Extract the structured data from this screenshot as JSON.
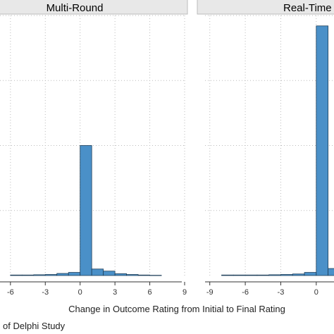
{
  "figure": {
    "xlabel": "Change in Outcome Rating from Initial to Final Rating",
    "legend_title": "of Delphi Study",
    "bar_color": "#4a90c8",
    "bar_stroke": "#1e3f5a",
    "strip_fill": "#e8e8e8",
    "grid_color": "#bbbbbb"
  },
  "chart_data": [
    {
      "type": "bar",
      "title": "Multi-Round",
      "xlabel": "Change in Outcome Rating from Initial to Final Rating",
      "xlim": [
        -6.9,
        9
      ],
      "ylim": [
        0,
        1
      ],
      "xticks": [
        "-6",
        "-3",
        "0",
        "3",
        "6",
        "9"
      ],
      "grid": "dotted",
      "bins": [
        {
          "x0": -6.0,
          "x1": -5.0,
          "value": 0.002
        },
        {
          "x0": -5.0,
          "x1": -4.0,
          "value": 0.002
        },
        {
          "x0": -4.0,
          "x1": -3.0,
          "value": 0.003
        },
        {
          "x0": -3.0,
          "x1": -2.0,
          "value": 0.004
        },
        {
          "x0": -2.0,
          "x1": -1.0,
          "value": 0.008
        },
        {
          "x0": -1.0,
          "x1": 0.0,
          "value": 0.012
        },
        {
          "x0": 0.0,
          "x1": 1.0,
          "value": 0.5
        },
        {
          "x0": 1.0,
          "x1": 2.0,
          "value": 0.025
        },
        {
          "x0": 2.0,
          "x1": 3.0,
          "value": 0.017
        },
        {
          "x0": 3.0,
          "x1": 4.0,
          "value": 0.007
        },
        {
          "x0": 4.0,
          "x1": 5.0,
          "value": 0.004
        },
        {
          "x0": 5.0,
          "x1": 6.0,
          "value": 0.002
        },
        {
          "x0": 6.0,
          "x1": 7.0,
          "value": 0.001
        }
      ]
    },
    {
      "type": "bar",
      "title": "Real-Time",
      "xlabel": "Change in Outcome Rating from Initial to Final Rating",
      "xlim": [
        -9.4,
        1.5
      ],
      "ylim": [
        0,
        1
      ],
      "xticks": [
        "-9",
        "-6",
        "-3",
        "0"
      ],
      "grid": "dotted",
      "bins": [
        {
          "x0": -8.0,
          "x1": -7.0,
          "value": 0.002
        },
        {
          "x0": -7.0,
          "x1": -6.0,
          "value": 0.002
        },
        {
          "x0": -6.0,
          "x1": -5.0,
          "value": 0.002
        },
        {
          "x0": -5.0,
          "x1": -4.0,
          "value": 0.002
        },
        {
          "x0": -4.0,
          "x1": -3.0,
          "value": 0.003
        },
        {
          "x0": -3.0,
          "x1": -2.0,
          "value": 0.004
        },
        {
          "x0": -2.0,
          "x1": -1.0,
          "value": 0.006
        },
        {
          "x0": -1.0,
          "x1": 0.0,
          "value": 0.012
        },
        {
          "x0": 0.0,
          "x1": 1.0,
          "value": 0.96
        },
        {
          "x0": 1.0,
          "x1": 2.0,
          "value": 0.027
        }
      ]
    }
  ]
}
